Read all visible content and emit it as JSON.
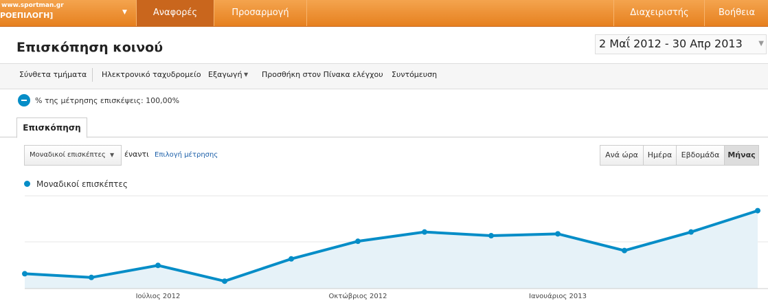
{
  "header": {
    "account": "www.sportman.gr",
    "profile": "ΡΟΕΠΙΛΟΓΗ]",
    "tabs": [
      "Αναφορές",
      "Προσαρμογή"
    ],
    "right_links": [
      "Διαχειριστής",
      "Βοήθεια"
    ]
  },
  "page": {
    "title": "Επισκόπηση κοινού",
    "date_range": "2 Μαΐ 2012 - 30 Απρ 2013"
  },
  "toolbar": [
    "Σύνθετα τμήματα",
    "Ηλεκτρονικό ταχυδρομείο",
    "Εξαγωγή",
    "Προσθήκη στον Πίνακα ελέγχου",
    "Συντόμευση"
  ],
  "segment": "% της μέτρησης επισκέψεις: 100,00%",
  "tab": "Επισκόπηση",
  "metric_select": "Μοναδικοί επισκέπτες",
  "versus": "έναντι",
  "select_metric": "Επιλογή μέτρησης",
  "granularity": [
    "Ανά ώρα",
    "Ημέρα",
    "Εβδομάδα",
    "Μήνας"
  ],
  "chart_data": {
    "type": "line",
    "categories": [
      null,
      null,
      "Ιούλιος 2012",
      null,
      null,
      "Οκτώβριος 2012",
      null,
      null,
      "Ιανουάριος 2013",
      null,
      null,
      null
    ],
    "series": [
      {
        "name": "Μοναδικοί επισκέπτες",
        "color": "#058dc7",
        "values": [
          16,
          12,
          25,
          8,
          32,
          51,
          61,
          57,
          59,
          41,
          61,
          84
        ]
      }
    ],
    "ylim": [
      0,
      100
    ]
  }
}
